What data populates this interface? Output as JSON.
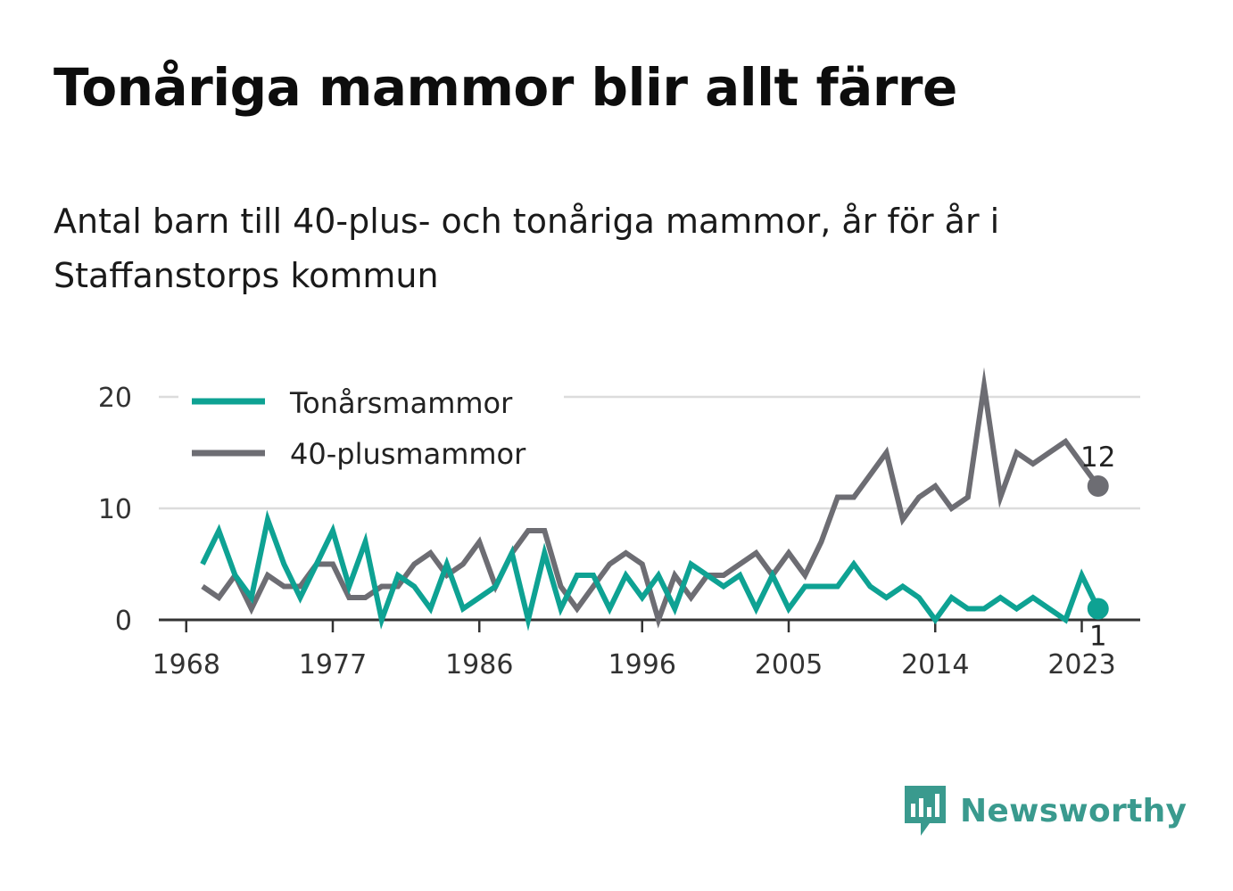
{
  "title": "Tonåriga mammor blir allt färre",
  "subtitle": "Antal barn till 40-plus- och tonåriga mammor, år för år i Staffanstorps kommun",
  "brand": {
    "name": "Newsworthy",
    "icon": "newsworthy-logo-icon"
  },
  "colors": {
    "teen": "#0ea293",
    "forty": "#6d6d73",
    "grid": "#dcdcdc",
    "axis": "#333333",
    "brand": "#3a9a8e"
  },
  "chart_data": {
    "type": "line",
    "x": [
      1969,
      1970,
      1971,
      1972,
      1973,
      1974,
      1975,
      1976,
      1977,
      1978,
      1979,
      1980,
      1981,
      1982,
      1983,
      1984,
      1985,
      1986,
      1987,
      1988,
      1989,
      1990,
      1991,
      1992,
      1993,
      1994,
      1995,
      1996,
      1997,
      1998,
      1999,
      2000,
      2001,
      2002,
      2003,
      2004,
      2005,
      2006,
      2007,
      2008,
      2009,
      2010,
      2011,
      2012,
      2013,
      2014,
      2015,
      2016,
      2017,
      2018,
      2019,
      2020,
      2021,
      2022,
      2023,
      2024
    ],
    "series": [
      {
        "name": "Tonårsmammor",
        "color": "#0ea293",
        "values": [
          5,
          8,
          4,
          2,
          9,
          5,
          2,
          5,
          8,
          3,
          7,
          0,
          4,
          3,
          1,
          5,
          1,
          2,
          3,
          6,
          0,
          6,
          1,
          4,
          4,
          1,
          4,
          2,
          4,
          1,
          5,
          4,
          3,
          4,
          1,
          4,
          1,
          3,
          3,
          3,
          5,
          3,
          2,
          3,
          2,
          0,
          2,
          1,
          1,
          2,
          1,
          2,
          1,
          0,
          4,
          1
        ]
      },
      {
        "name": "40-plusmammor",
        "color": "#6d6d73",
        "values": [
          3,
          2,
          4,
          1,
          4,
          3,
          3,
          5,
          5,
          2,
          2,
          3,
          3,
          5,
          6,
          4,
          5,
          7,
          3,
          6,
          8,
          8,
          3,
          1,
          3,
          5,
          6,
          5,
          0,
          4,
          2,
          4,
          4,
          5,
          6,
          4,
          6,
          4,
          7,
          11,
          11,
          13,
          15,
          9,
          11,
          12,
          10,
          11,
          21,
          11,
          15,
          14,
          15,
          16,
          14,
          12
        ]
      }
    ],
    "x_ticks": [
      "1968",
      "1977",
      "1986",
      "1996",
      "2005",
      "2014",
      "2023"
    ],
    "y_ticks": [
      "0",
      "10",
      "20"
    ],
    "ylim": [
      0,
      22
    ],
    "grid": true,
    "legend": "top-left",
    "end_labels": {
      "Tonårsmammor": "1",
      "40-plusmammor": "12"
    },
    "title": "",
    "xlabel": "",
    "ylabel": ""
  }
}
